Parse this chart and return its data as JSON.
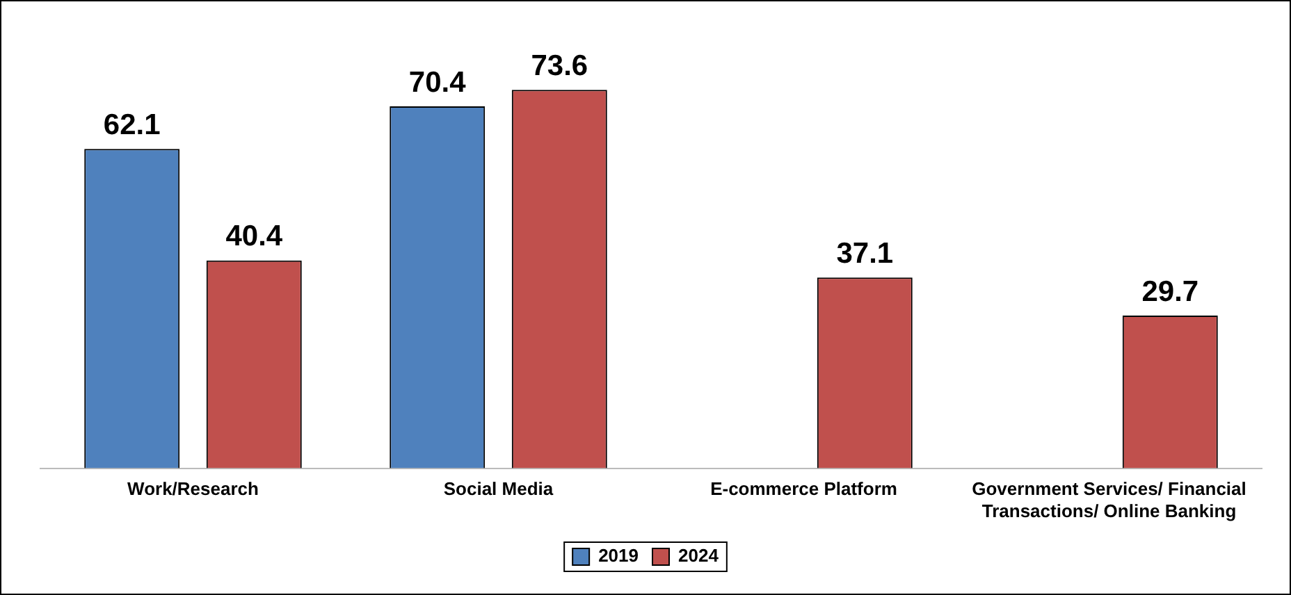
{
  "chart_data": {
    "type": "bar",
    "categories": [
      "Work/Research",
      "Social Media",
      "E-commerce Platform",
      "Government Services/ Financial Transactions/ Online Banking"
    ],
    "series": [
      {
        "name": "2019",
        "color": "#4f81bd",
        "values": [
          62.1,
          70.4,
          null,
          null
        ]
      },
      {
        "name": "2024",
        "color": "#c0504d",
        "values": [
          40.4,
          73.6,
          37.1,
          29.7
        ]
      }
    ],
    "data_labels": true,
    "legend": "bottom",
    "grid": false,
    "relative": false
  }
}
